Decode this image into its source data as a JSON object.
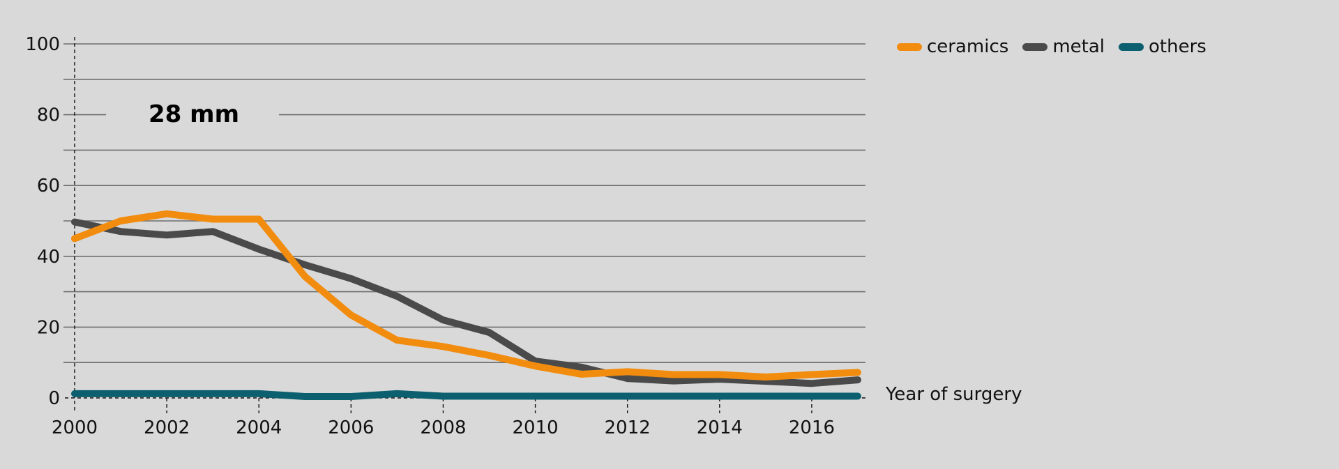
{
  "chart_data": {
    "type": "line",
    "title": "28 mm",
    "xlabel": "Year of surgery",
    "ylabel": "",
    "xlim": [
      2000,
      2017
    ],
    "ylim": [
      0,
      100
    ],
    "grid": true,
    "legend_position": "top-right",
    "x": [
      2000,
      2001,
      2002,
      2003,
      2004,
      2005,
      2006,
      2007,
      2008,
      2009,
      2010,
      2011,
      2012,
      2013,
      2014,
      2015,
      2016,
      2017
    ],
    "x_tick_labels": [
      "2000",
      "2002",
      "2004",
      "2006",
      "2008",
      "2010",
      "2012",
      "2014",
      "2016"
    ],
    "x_ticks": [
      2000,
      2002,
      2004,
      2006,
      2008,
      2010,
      2012,
      2014,
      2016
    ],
    "y_tick_labels": [
      "0",
      "20",
      "40",
      "60",
      "80",
      "100"
    ],
    "y_ticks": [
      0,
      20,
      40,
      60,
      80,
      100
    ],
    "y_gridlines": [
      10,
      20,
      30,
      40,
      50,
      60,
      70,
      80,
      90,
      100
    ],
    "series": [
      {
        "name": "ceramics",
        "color": "#f28c0f",
        "values": [
          45,
          50,
          52,
          50.5,
          50.5,
          34.3,
          23.4,
          16.3,
          14.5,
          12,
          9,
          6.7,
          7.4,
          6.6,
          6.6,
          5.9,
          6.6,
          7.2
        ]
      },
      {
        "name": "metal",
        "color": "#4a4a4a",
        "values": [
          49.7,
          47,
          46,
          47,
          42,
          37.6,
          33.7,
          28.7,
          22,
          18.5,
          10.4,
          8.7,
          5.5,
          4.8,
          5.3,
          4.7,
          4.1,
          5.1
        ]
      },
      {
        "name": "others",
        "color": "#0b5f6e",
        "values": [
          1.2,
          1.2,
          1.2,
          1.2,
          1.2,
          0.4,
          0.4,
          1.2,
          0.5,
          0.5,
          0.5,
          0.5,
          0.5,
          0.5,
          0.5,
          0.5,
          0.5,
          0.5
        ]
      }
    ]
  },
  "colors": {
    "background": "#d9d9d9",
    "gridline": "#6e6e6e",
    "axis": "#111111"
  }
}
